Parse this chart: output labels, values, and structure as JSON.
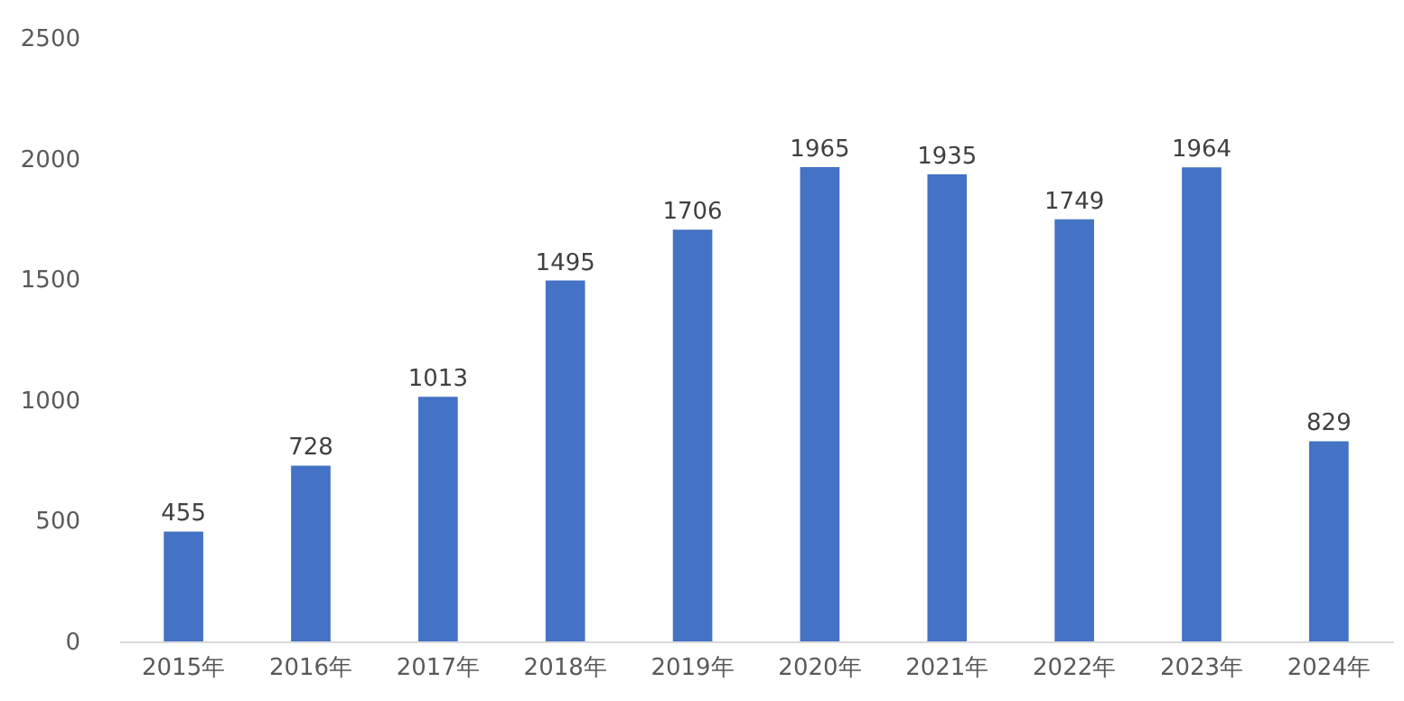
{
  "chart_data": {
    "type": "bar",
    "categories": [
      "2015年",
      "2016年",
      "2017年",
      "2018年",
      "2019年",
      "2020年",
      "2021年",
      "2022年",
      "2023年",
      "2024年"
    ],
    "values": [
      455,
      728,
      1013,
      1495,
      1706,
      1965,
      1935,
      1749,
      1964,
      829
    ],
    "color": "#4472c4",
    "ylim": [
      0,
      2500
    ],
    "yticks": [
      0,
      500,
      1000,
      1500,
      2000,
      2500
    ],
    "grid": false,
    "data_labels": true
  }
}
